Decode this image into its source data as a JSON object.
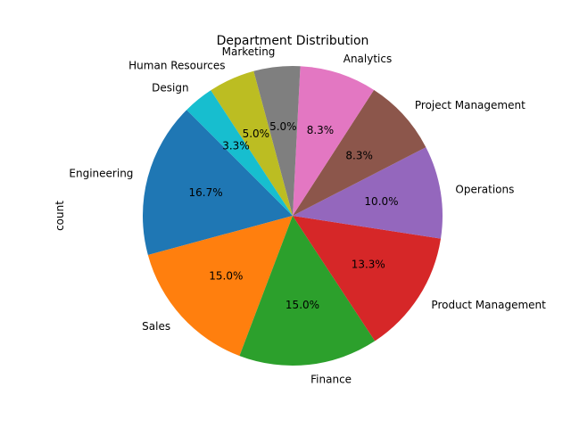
{
  "chart_data": {
    "type": "pie",
    "title": "Department Distribution",
    "ylabel": "count",
    "xlabel": "",
    "start_angle_deg": 135,
    "direction": "counterclockwise",
    "slices": [
      {
        "label": "Engineering",
        "value": 16.7,
        "pct_label": "16.7%",
        "color": "#1f77b4"
      },
      {
        "label": "Sales",
        "value": 15.0,
        "pct_label": "15.0%",
        "color": "#ff7f0e"
      },
      {
        "label": "Finance",
        "value": 15.0,
        "pct_label": "15.0%",
        "color": "#2ca02c"
      },
      {
        "label": "Product Management",
        "value": 13.3,
        "pct_label": "13.3%",
        "color": "#d62728"
      },
      {
        "label": "Operations",
        "value": 10.0,
        "pct_label": "10.0%",
        "color": "#9467bd"
      },
      {
        "label": "Project Management",
        "value": 8.3,
        "pct_label": "8.3%",
        "color": "#8c564b"
      },
      {
        "label": "Analytics",
        "value": 8.3,
        "pct_label": "8.3%",
        "color": "#e377c2"
      },
      {
        "label": "Marketing",
        "value": 5.0,
        "pct_label": "5.0%",
        "color": "#7f7f7f"
      },
      {
        "label": "Human Resources",
        "value": 5.0,
        "pct_label": "5.0%",
        "color": "#bcbd22"
      },
      {
        "label": "Design",
        "value": 3.3,
        "pct_label": "3.3%",
        "color": "#17becf"
      }
    ]
  }
}
